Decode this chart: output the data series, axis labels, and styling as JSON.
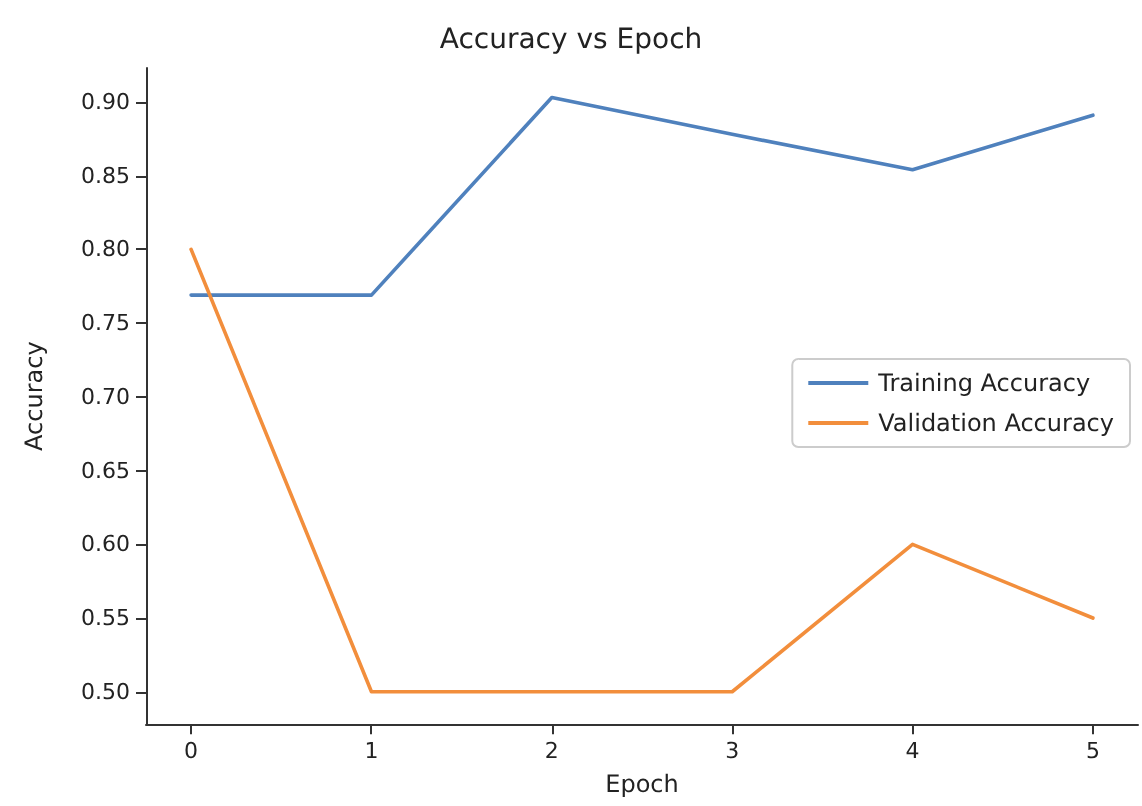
{
  "chart_data": {
    "type": "line",
    "title": "Accuracy vs Epoch",
    "xlabel": "Epoch",
    "ylabel": "Accuracy",
    "x": [
      0,
      1,
      2,
      3,
      4,
      5
    ],
    "series": [
      {
        "name": "Training Accuracy",
        "color": "#4f81bd",
        "values": [
          0.769,
          0.769,
          0.903,
          0.878,
          0.854,
          0.891
        ]
      },
      {
        "name": "Validation Accuracy",
        "color": "#f28e3c",
        "values": [
          0.8,
          0.5,
          0.5,
          0.5,
          0.6,
          0.55
        ]
      }
    ],
    "xlim": [
      -0.25,
      5.25
    ],
    "xticks": [
      0,
      1,
      2,
      3,
      4,
      5
    ],
    "ylim": [
      0.478,
      0.923
    ],
    "yticks": [
      {
        "value": 0.5,
        "label": "0.50"
      },
      0.55,
      {
        "value": 0.6,
        "label": "0.60"
      },
      0.65,
      {
        "value": 0.7,
        "label": "0.70"
      },
      0.75,
      {
        "value": 0.8,
        "label": "0.80"
      },
      0.85,
      {
        "value": 0.9,
        "label": "0.90"
      }
    ],
    "grid": false,
    "legend": "right",
    "marker": "none",
    "line_style": "solid"
  }
}
